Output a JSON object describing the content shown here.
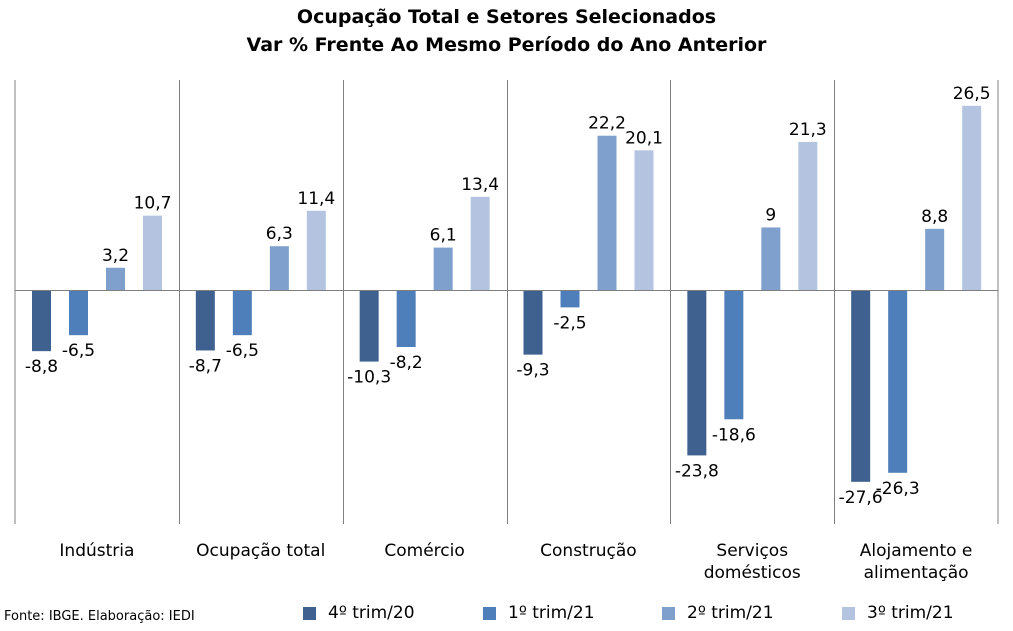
{
  "title_line1": "Ocupação Total e Setores Selecionados",
  "title_line2": "Var % Frente Ao Mesmo Período do Ano Anterior",
  "source": "Fonte: IBGE. Elaboração: IEDI",
  "chart_data": {
    "type": "bar",
    "title": "Ocupação Total e Setores Selecionados — Var % Frente Ao Mesmo Período do Ano Anterior",
    "categories": [
      [
        "Indústria"
      ],
      [
        "Ocupação total"
      ],
      [
        "Comércio"
      ],
      [
        "Construção"
      ],
      [
        "Serviços",
        "domésticos"
      ],
      [
        "Alojamento e",
        "alimentação"
      ]
    ],
    "series": [
      {
        "name": "4º trim/20",
        "color": "#3f6190",
        "values": [
          -8.8,
          -8.7,
          -10.3,
          -9.3,
          -23.8,
          -27.6
        ],
        "labels": [
          "-8,8",
          "-8,7",
          "-10,3",
          "-9,3",
          "-23,8",
          "-27,6"
        ]
      },
      {
        "name": "1º trim/21",
        "color": "#4e7fba",
        "values": [
          -6.5,
          -6.5,
          -8.2,
          -2.5,
          -18.6,
          -26.3
        ],
        "labels": [
          "-6,5",
          "-6,5",
          "-8,2",
          "-2,5",
          "-18,6",
          "-26,3"
        ]
      },
      {
        "name": "2º trim/21",
        "color": "#7f9fcc",
        "values": [
          3.2,
          6.3,
          6.1,
          22.2,
          9,
          8.8
        ],
        "labels": [
          "3,2",
          "6,3",
          "6,1",
          "22,2",
          "9",
          "8,8"
        ]
      },
      {
        "name": "3º trim/21",
        "color": "#b4c4e0",
        "values": [
          10.7,
          11.4,
          13.4,
          20.1,
          21.3,
          26.5
        ],
        "labels": [
          "10,7",
          "11,4",
          "13,4",
          "20,1",
          "21,3",
          "26,5"
        ]
      }
    ],
    "legend_position": "bottom",
    "grid": false
  }
}
